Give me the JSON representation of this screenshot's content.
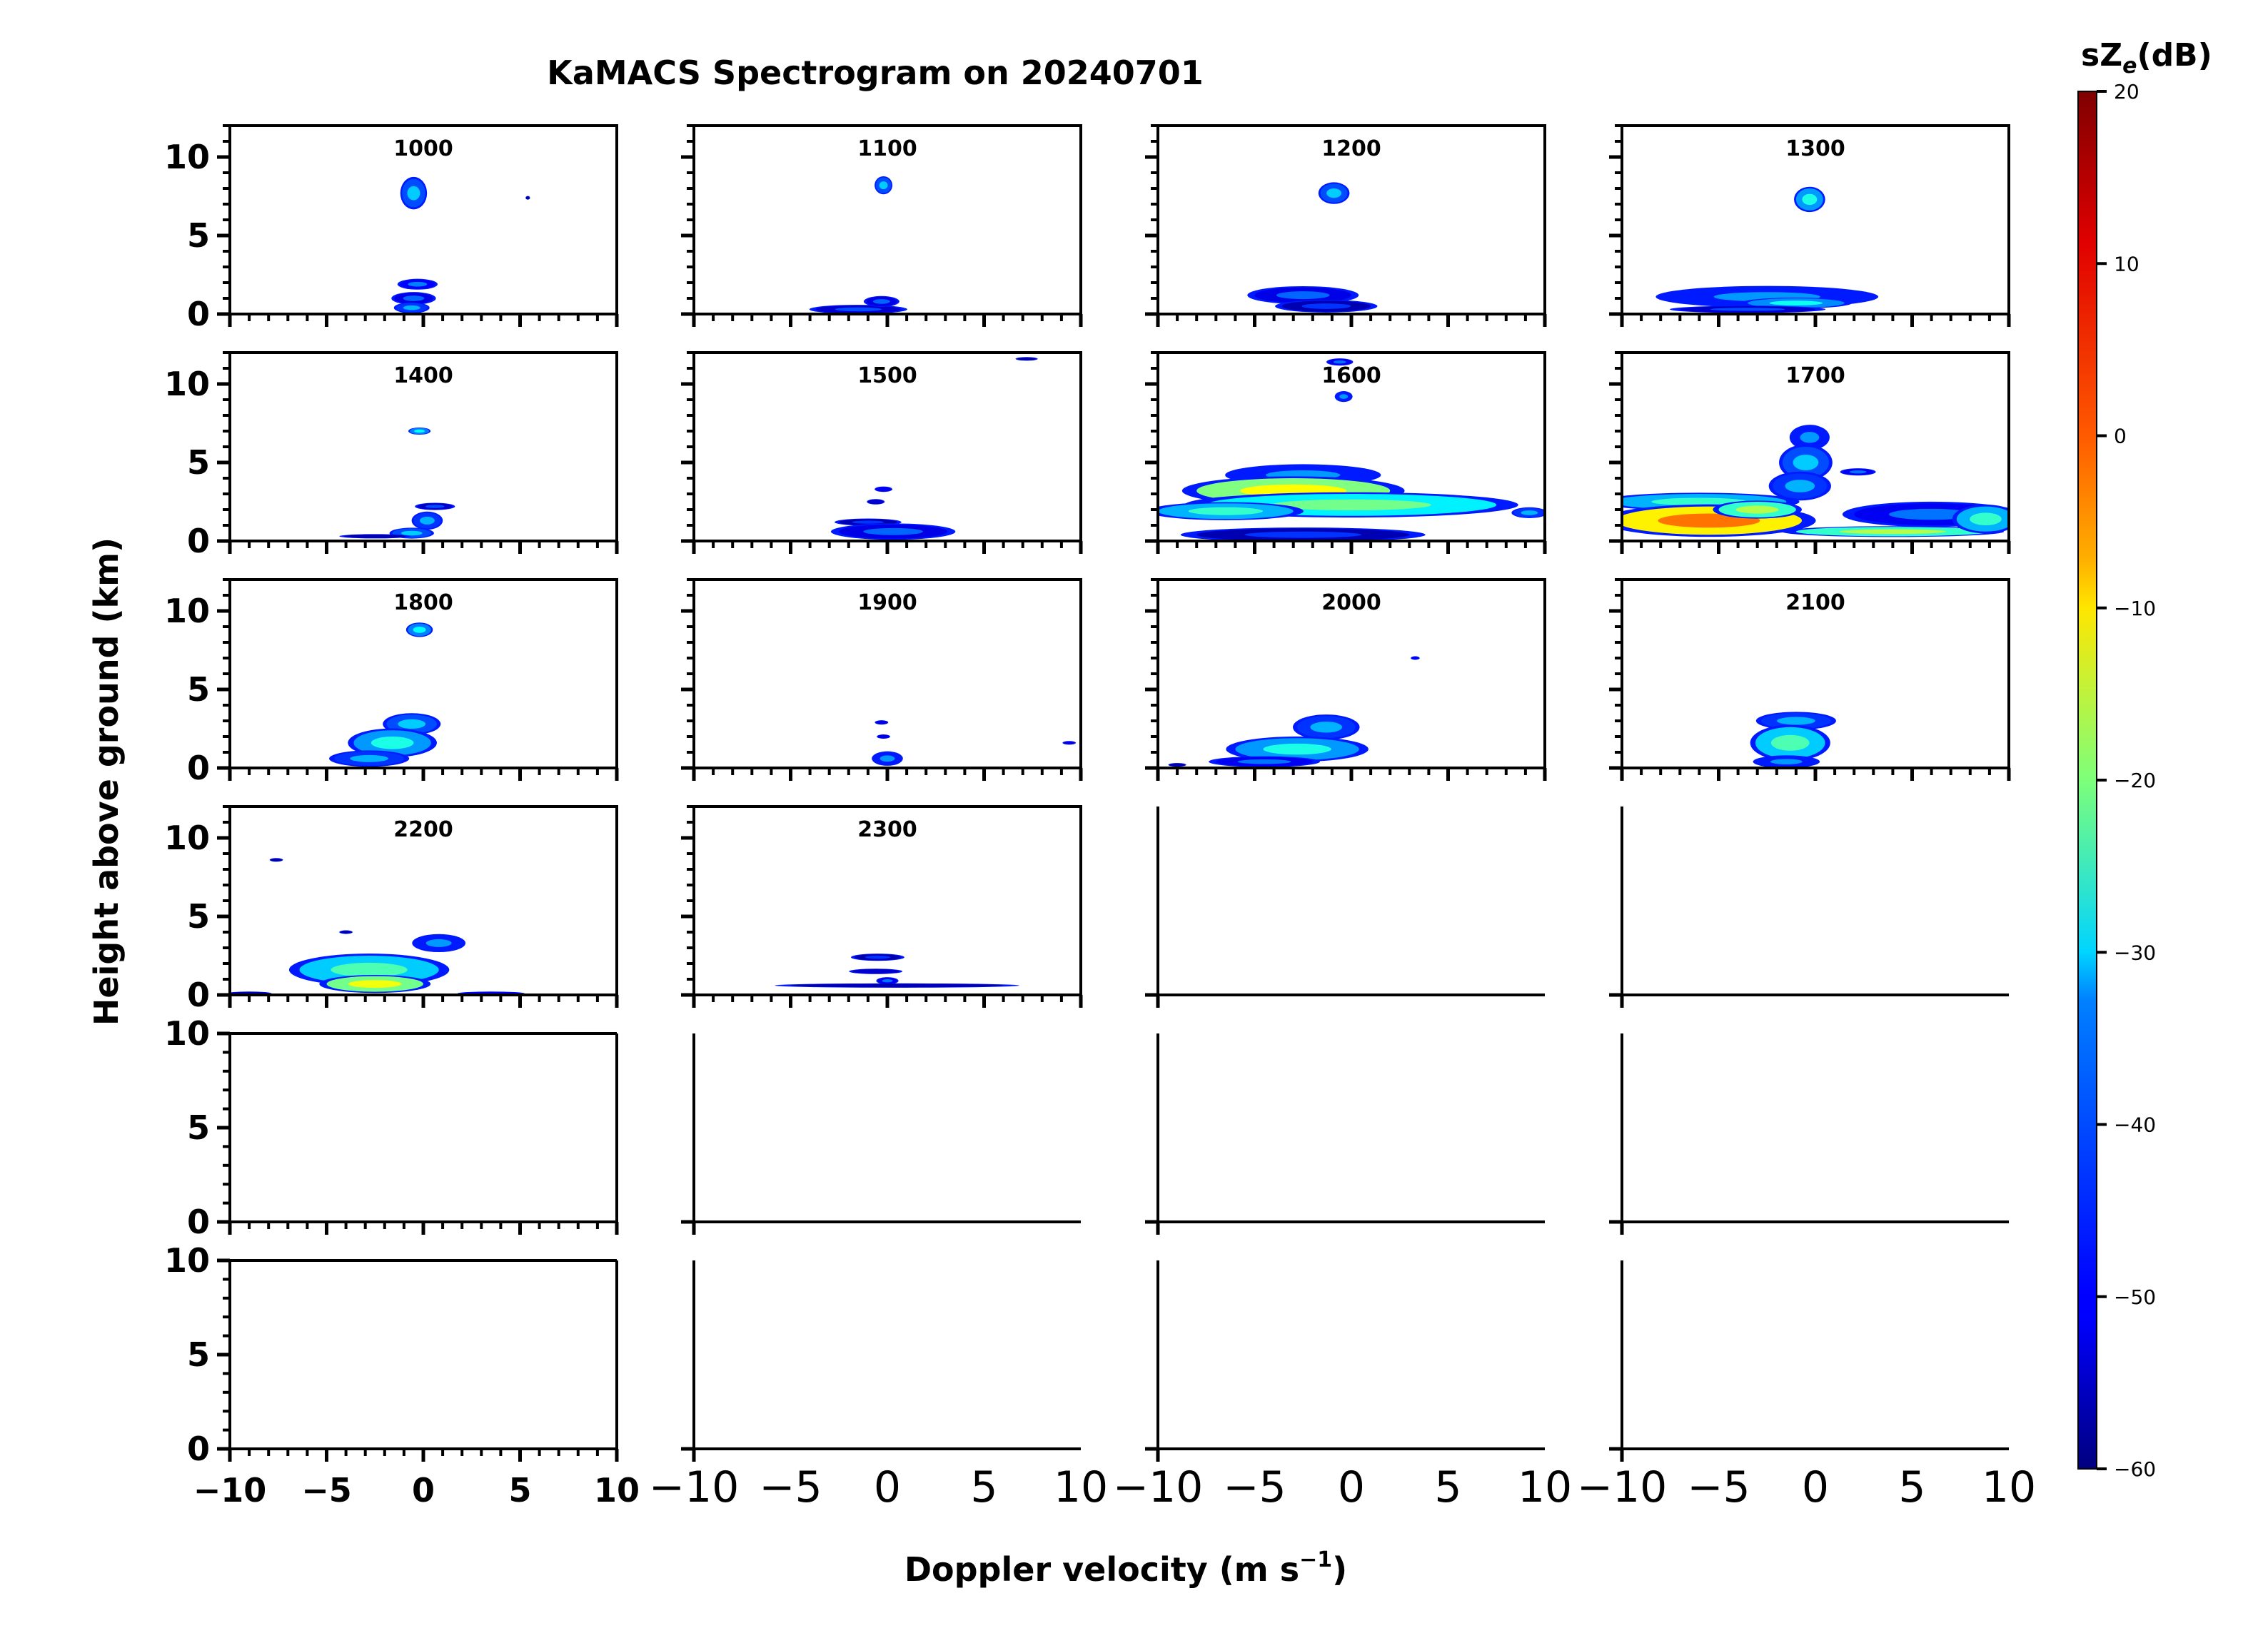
{
  "figure": {
    "title": "KaMACS Spectrogram on 20240701",
    "xlabel": "Doppler velocity (m s",
    "xlabel_sup": "−1",
    "xlabel_end": ")",
    "ylabel": "Height above ground (km)"
  },
  "chart_data": {
    "type": "heatmap",
    "title": "KaMACS Spectrogram on 20240701",
    "xlabel": "Doppler velocity (m s⁻¹)",
    "ylabel": "Height above ground (km)",
    "xlim": [
      -10,
      10
    ],
    "ylim_top_rows": [
      0,
      12
    ],
    "ylim_bottom_rows": [
      0,
      10
    ],
    "grid": false,
    "x_ticks": [
      -10,
      -5,
      0,
      5,
      10
    ],
    "x_tick_labels": [
      "−10",
      "−5",
      "0",
      "5",
      "10"
    ],
    "y_ticks": [
      0,
      5,
      10
    ],
    "layout": {
      "rows": 6,
      "cols": 4
    },
    "colorbar": {
      "label": "sZ",
      "label_sub": "e",
      "label_end": "(dB)",
      "range": [
        -60,
        20
      ],
      "ticks": [
        20,
        10,
        0,
        -10,
        -20,
        -30,
        -40,
        -50,
        -60
      ],
      "tick_labels": [
        "20",
        "10",
        "0",
        "−10",
        "−20",
        "−30",
        "−40",
        "−50",
        "−60"
      ],
      "colormap": "jet"
    },
    "panels": [
      {
        "time": "1000",
        "blobs": [
          {
            "v": -0.5,
            "h": 7.7,
            "dv": 0.6,
            "dh": 0.9,
            "z": -38
          },
          {
            "v": 5.4,
            "h": 7.4,
            "dv": 0.1,
            "dh": 0.1,
            "z": -50
          },
          {
            "v": -0.3,
            "h": 1.9,
            "dv": 0.9,
            "dh": 0.3,
            "z": -44
          },
          {
            "v": -0.5,
            "h": 1.0,
            "dv": 1.0,
            "dh": 0.35,
            "z": -46
          },
          {
            "v": -0.6,
            "h": 0.4,
            "dv": 0.8,
            "dh": 0.3,
            "z": -40
          }
        ]
      },
      {
        "time": "1100",
        "blobs": [
          {
            "v": -0.2,
            "h": 8.2,
            "dv": 0.4,
            "dh": 0.5,
            "z": -38
          },
          {
            "v": -1.5,
            "h": 0.3,
            "dv": 2.2,
            "dh": 0.25,
            "z": -48
          },
          {
            "v": -0.3,
            "h": 0.8,
            "dv": 0.8,
            "dh": 0.3,
            "z": -46
          }
        ]
      },
      {
        "time": "1200",
        "blobs": [
          {
            "v": -0.9,
            "h": 7.7,
            "dv": 0.7,
            "dh": 0.6,
            "z": -38
          },
          {
            "v": -2.5,
            "h": 1.2,
            "dv": 2.5,
            "dh": 0.5,
            "z": -46
          },
          {
            "v": -1.3,
            "h": 0.5,
            "dv": 2.3,
            "dh": 0.35,
            "z": -50
          }
        ]
      },
      {
        "time": "1300",
        "blobs": [
          {
            "v": -0.3,
            "h": 7.3,
            "dv": 0.7,
            "dh": 0.7,
            "z": -32
          },
          {
            "v": -2.5,
            "h": 1.1,
            "dv": 5.0,
            "dh": 0.6,
            "z": -42
          },
          {
            "v": -1.0,
            "h": 0.7,
            "dv": 2.5,
            "dh": 0.3,
            "z": -33
          },
          {
            "v": -3.5,
            "h": 0.3,
            "dv": 3.5,
            "dh": 0.2,
            "z": -48
          }
        ]
      },
      {
        "time": "1400",
        "blobs": [
          {
            "v": -0.2,
            "h": 7.0,
            "dv": 0.5,
            "dh": 0.2,
            "z": -34
          },
          {
            "v": 0.6,
            "h": 2.2,
            "dv": 0.9,
            "dh": 0.2,
            "z": -48
          },
          {
            "v": 0.2,
            "h": 1.3,
            "dv": 0.7,
            "dh": 0.5,
            "z": -40
          },
          {
            "v": -0.6,
            "h": 0.5,
            "dv": 1.0,
            "dh": 0.3,
            "z": -38
          },
          {
            "v": -2.5,
            "h": 0.3,
            "dv": 1.6,
            "dh": 0.12,
            "z": -50
          }
        ]
      },
      {
        "time": "1500",
        "blobs": [
          {
            "v": 7.2,
            "h": 11.6,
            "dv": 0.5,
            "dh": 0.1,
            "z": -50
          },
          {
            "v": -0.2,
            "h": 3.3,
            "dv": 0.4,
            "dh": 0.15,
            "z": -45
          },
          {
            "v": -0.6,
            "h": 2.5,
            "dv": 0.4,
            "dh": 0.15,
            "z": -48
          },
          {
            "v": -1.0,
            "h": 1.2,
            "dv": 1.5,
            "dh": 0.2,
            "z": -50
          },
          {
            "v": 0.3,
            "h": 0.6,
            "dv": 2.8,
            "dh": 0.45,
            "z": -46
          }
        ]
      },
      {
        "time": "1600",
        "blobs": [
          {
            "v": -0.6,
            "h": 11.4,
            "dv": 0.6,
            "dh": 0.2,
            "z": -45
          },
          {
            "v": -0.4,
            "h": 9.2,
            "dv": 0.4,
            "dh": 0.3,
            "z": -42
          },
          {
            "v": -2.5,
            "h": 4.2,
            "dv": 3.5,
            "dh": 0.6,
            "z": -42
          },
          {
            "v": -3.0,
            "h": 3.2,
            "dv": 5.0,
            "dh": 0.8,
            "z": -14
          },
          {
            "v": 0.0,
            "h": 2.3,
            "dv": 7.5,
            "dh": 0.7,
            "z": -25
          },
          {
            "v": -6.5,
            "h": 1.9,
            "dv": 3.5,
            "dh": 0.5,
            "z": -30
          },
          {
            "v": -2.5,
            "h": 0.4,
            "dv": 5.5,
            "dh": 0.4,
            "z": -50
          },
          {
            "v": 9.2,
            "h": 1.8,
            "dv": 0.8,
            "dh": 0.3,
            "z": -40
          }
        ]
      },
      {
        "time": "1700",
        "blobs": [
          {
            "v": -0.3,
            "h": 6.6,
            "dv": 0.9,
            "dh": 0.7,
            "z": -42
          },
          {
            "v": -0.5,
            "h": 5.0,
            "dv": 1.2,
            "dh": 1.0,
            "z": -38
          },
          {
            "v": -0.8,
            "h": 3.5,
            "dv": 1.4,
            "dh": 0.8,
            "z": -40
          },
          {
            "v": 2.2,
            "h": 4.4,
            "dv": 0.8,
            "dh": 0.2,
            "z": -45
          },
          {
            "v": -6.0,
            "h": 2.5,
            "dv": 4.5,
            "dh": 0.5,
            "z": -30
          },
          {
            "v": -5.5,
            "h": 1.3,
            "dv": 4.8,
            "dh": 0.9,
            "z": -3
          },
          {
            "v": -3.0,
            "h": 2.0,
            "dv": 2.0,
            "dh": 0.5,
            "z": -20
          },
          {
            "v": 6.0,
            "h": 1.7,
            "dv": 4.0,
            "dh": 0.7,
            "z": -45
          },
          {
            "v": 4.0,
            "h": 0.6,
            "dv": 5.0,
            "dh": 0.3,
            "z": -20
          },
          {
            "v": 8.8,
            "h": 1.4,
            "dv": 1.5,
            "dh": 0.8,
            "z": -30
          }
        ]
      },
      {
        "time": "1800",
        "blobs": [
          {
            "v": -0.2,
            "h": 8.8,
            "dv": 0.6,
            "dh": 0.4,
            "z": -34
          },
          {
            "v": -0.6,
            "h": 2.8,
            "dv": 1.3,
            "dh": 0.6,
            "z": -38
          },
          {
            "v": -1.6,
            "h": 1.6,
            "dv": 2.0,
            "dh": 0.8,
            "z": -32
          },
          {
            "v": -2.8,
            "h": 0.6,
            "dv": 1.8,
            "dh": 0.45,
            "z": -40
          }
        ]
      },
      {
        "time": "1900",
        "blobs": [
          {
            "v": -0.3,
            "h": 2.9,
            "dv": 0.3,
            "dh": 0.12,
            "z": -46
          },
          {
            "v": -0.2,
            "h": 2.0,
            "dv": 0.3,
            "dh": 0.12,
            "z": -46
          },
          {
            "v": 0.0,
            "h": 0.6,
            "dv": 0.7,
            "dh": 0.4,
            "z": -42
          },
          {
            "v": 9.4,
            "h": 1.6,
            "dv": 0.3,
            "dh": 0.1,
            "z": -46
          }
        ]
      },
      {
        "time": "2000",
        "blobs": [
          {
            "v": 3.3,
            "h": 7.0,
            "dv": 0.2,
            "dh": 0.1,
            "z": -45
          },
          {
            "v": -1.3,
            "h": 2.6,
            "dv": 1.5,
            "dh": 0.7,
            "z": -40
          },
          {
            "v": -2.8,
            "h": 1.2,
            "dv": 3.2,
            "dh": 0.7,
            "z": -32
          },
          {
            "v": -4.5,
            "h": 0.4,
            "dv": 2.5,
            "dh": 0.3,
            "z": -45
          },
          {
            "v": -9.0,
            "h": 0.2,
            "dv": 0.4,
            "dh": 0.1,
            "z": -50
          }
        ]
      },
      {
        "time": "2100",
        "blobs": [
          {
            "v": -1.0,
            "h": 3.0,
            "dv": 1.8,
            "dh": 0.5,
            "z": -40
          },
          {
            "v": -1.3,
            "h": 1.6,
            "dv": 1.8,
            "dh": 1.0,
            "z": -28
          },
          {
            "v": -1.5,
            "h": 0.4,
            "dv": 1.5,
            "dh": 0.35,
            "z": -42
          }
        ]
      },
      {
        "time": "2200",
        "blobs": [
          {
            "v": -7.6,
            "h": 8.6,
            "dv": 0.3,
            "dh": 0.1,
            "z": -50
          },
          {
            "v": -4.0,
            "h": 4.0,
            "dv": 0.3,
            "dh": 0.1,
            "z": -50
          },
          {
            "v": 0.8,
            "h": 3.3,
            "dv": 1.2,
            "dh": 0.5,
            "z": -42
          },
          {
            "v": -2.8,
            "h": 1.6,
            "dv": 3.6,
            "dh": 0.9,
            "z": -28
          },
          {
            "v": -2.5,
            "h": 0.7,
            "dv": 2.5,
            "dh": 0.5,
            "z": -15
          },
          {
            "v": -9.0,
            "h": 0.1,
            "dv": 1.0,
            "dh": 0.1,
            "z": -50
          },
          {
            "v": 3.5,
            "h": 0.1,
            "dv": 1.5,
            "dh": 0.1,
            "z": -45
          }
        ]
      },
      {
        "time": "2300",
        "blobs": [
          {
            "v": -0.5,
            "h": 2.4,
            "dv": 1.2,
            "dh": 0.2,
            "z": -50
          },
          {
            "v": -0.6,
            "h": 1.5,
            "dv": 1.2,
            "dh": 0.15,
            "z": -48
          },
          {
            "v": 0.0,
            "h": 0.9,
            "dv": 0.5,
            "dh": 0.2,
            "z": -45
          },
          {
            "v": 0.5,
            "h": 0.6,
            "dv": 5.5,
            "dh": 0.12,
            "z": -50
          }
        ]
      }
    ]
  }
}
